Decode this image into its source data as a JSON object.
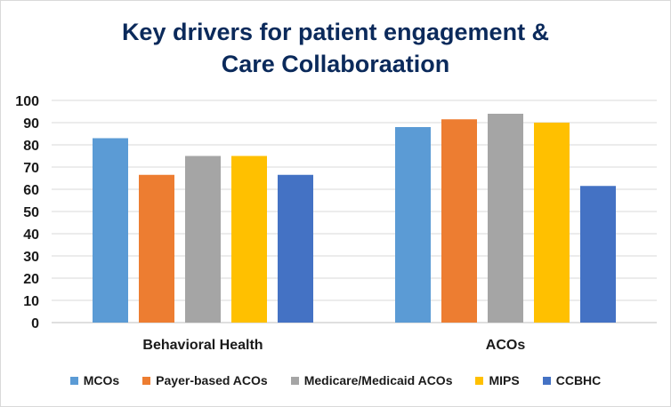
{
  "chart_data": {
    "type": "bar",
    "title_lines": [
      "Key drivers for patient engagement &",
      "Care Collaboraation"
    ],
    "categories": [
      "Behavioral Health",
      "ACOs"
    ],
    "series": [
      {
        "name": "MCOs",
        "color": "#5b9bd5",
        "values": [
          83,
          88
        ]
      },
      {
        "name": "Payer-based ACOs",
        "color": "#ed7d31",
        "values": [
          66.5,
          91.5
        ]
      },
      {
        "name": "Medicare/Medicaid ACOs",
        "color": "#a5a5a5",
        "values": [
          75,
          94
        ]
      },
      {
        "name": "MIPS",
        "color": "#ffc000",
        "values": [
          75,
          90
        ]
      },
      {
        "name": "CCBHC",
        "color": "#4472c4",
        "values": [
          66.5,
          61.5
        ]
      }
    ],
    "y_ticks": [
      "0",
      "10",
      "20",
      "30",
      "40",
      "50",
      "60",
      "70",
      "80",
      "90",
      "100"
    ],
    "ylim": [
      0,
      100
    ],
    "grid": true,
    "legend_position": "bottom"
  }
}
